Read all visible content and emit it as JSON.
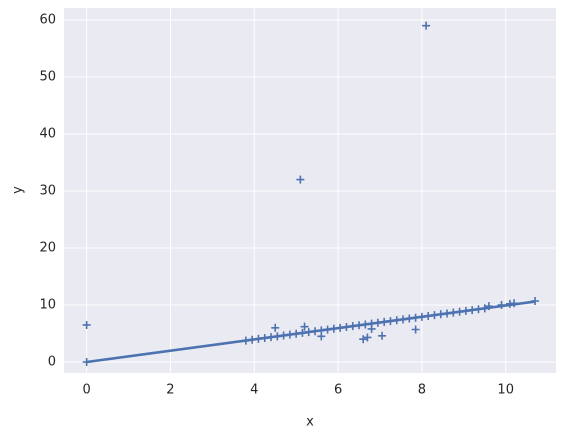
{
  "chart_data": {
    "type": "scatter",
    "x_label": "x",
    "y_label": "y",
    "xlim": [
      -0.54,
      11.2
    ],
    "ylim": [
      -1.93,
      62.1
    ],
    "xticks": [
      0,
      2,
      4,
      6,
      8,
      10
    ],
    "yticks": [
      0,
      10,
      20,
      30,
      40,
      50,
      60
    ],
    "grid": true,
    "color": "#4c72b0",
    "marker": "+",
    "points": {
      "x": [
        0,
        0,
        4.5,
        5.1,
        8.1,
        5.2,
        5.6,
        6.6,
        6.7,
        7.05,
        6.8,
        7.85,
        9.6,
        9.9,
        10.1,
        10.2,
        10.7,
        3.8,
        3.95,
        4.1,
        4.25,
        4.4,
        4.55,
        4.7,
        4.85,
        5.0,
        5.15,
        5.3,
        5.45,
        5.6,
        5.75,
        5.9,
        6.05,
        6.2,
        6.35,
        6.5,
        6.65,
        6.8,
        6.95,
        7.1,
        7.25,
        7.4,
        7.55,
        7.7,
        7.85,
        8.0,
        8.15,
        8.3,
        8.45,
        8.6,
        8.75,
        8.9,
        9.05,
        9.2,
        9.35,
        9.5
      ],
      "y": [
        6.5,
        0,
        6,
        32,
        59,
        6.2,
        4.5,
        4,
        4.3,
        4.6,
        5.8,
        5.7,
        9.8,
        10,
        10.2,
        10.3,
        10.7,
        3.76,
        3.91,
        4.06,
        4.21,
        4.36,
        4.5,
        4.65,
        4.8,
        4.95,
        5.1,
        5.25,
        5.4,
        5.54,
        5.69,
        5.84,
        5.99,
        6.14,
        6.29,
        6.44,
        6.58,
        6.73,
        6.88,
        7.03,
        7.18,
        7.33,
        7.47,
        7.62,
        7.77,
        7.92,
        8.07,
        8.22,
        8.37,
        8.51,
        8.66,
        8.81,
        8.96,
        9.11,
        9.26,
        9.41
      ]
    },
    "fit": {
      "x": [
        0,
        10.7
      ],
      "y": [
        0,
        10.6
      ]
    }
  }
}
